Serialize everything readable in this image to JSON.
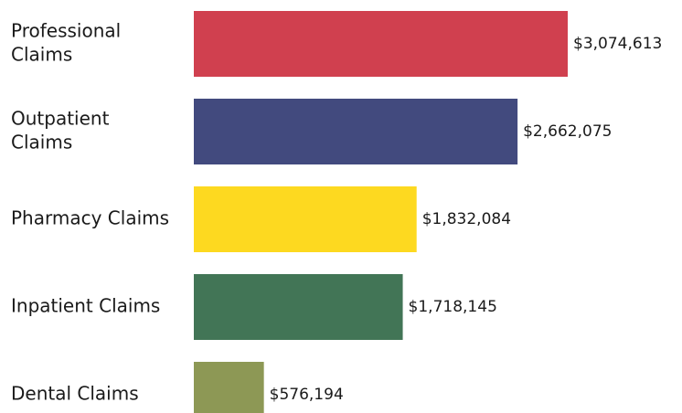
{
  "chart_data": {
    "type": "bar",
    "orientation": "horizontal",
    "categories": [
      [
        "Professional",
        "Claims"
      ],
      [
        "Outpatient",
        "Claims"
      ],
      [
        "Pharmacy Claims"
      ],
      [
        "Inpatient Claims"
      ],
      [
        "Dental Claims"
      ]
    ],
    "values": [
      3074613,
      2662075,
      1832084,
      1718145,
      576194
    ],
    "value_labels": [
      "$3,074,613",
      "$2,662,075",
      "$1,832,084",
      "$1,718,145",
      "$576,194"
    ],
    "colors": [
      "#d0404f",
      "#424a7e",
      "#fdd920",
      "#427556",
      "#8d9855"
    ],
    "xlim": [
      0,
      3074613
    ],
    "grid": false,
    "legend": "none"
  }
}
